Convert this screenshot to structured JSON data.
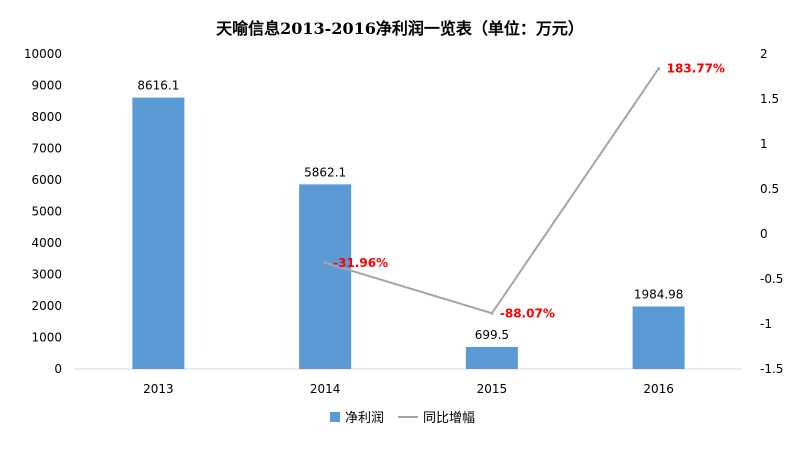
{
  "chart_data": {
    "type": "bar",
    "title": "天喻信息2013-2016净利润一览表（单位：万元）",
    "categories": [
      "2013",
      "2014",
      "2015",
      "2016"
    ],
    "series": [
      {
        "name": "净利润",
        "type": "bar",
        "axis": "left",
        "values": [
          8616.1,
          5862.1,
          699.5,
          1984.98
        ],
        "labels": [
          "8616.1",
          "5862.1",
          "699.5",
          "1984.98"
        ],
        "color": "#5b9bd5"
      },
      {
        "name": "同比增幅",
        "type": "line",
        "axis": "right",
        "points": [
          {
            "category": "2014",
            "value": -0.3196,
            "label": "-31.96%"
          },
          {
            "category": "2015",
            "value": -0.8807,
            "label": "-88.07%"
          },
          {
            "category": "2016",
            "value": 1.8377,
            "label": "183.77%"
          }
        ],
        "color": "#a5a5a5",
        "label_color": "#ff0000"
      }
    ],
    "y_left": {
      "min": 0,
      "max": 10000,
      "ticks": [
        "0",
        "1000",
        "2000",
        "3000",
        "4000",
        "5000",
        "6000",
        "7000",
        "8000",
        "9000",
        "10000"
      ]
    },
    "y_right": {
      "min": -1.5,
      "max": 2,
      "ticks": [
        "-1.5",
        "-1",
        "-0.5",
        "0",
        "0.5",
        "1",
        "1.5",
        "2"
      ]
    },
    "grid": false,
    "legend": "bottom"
  }
}
